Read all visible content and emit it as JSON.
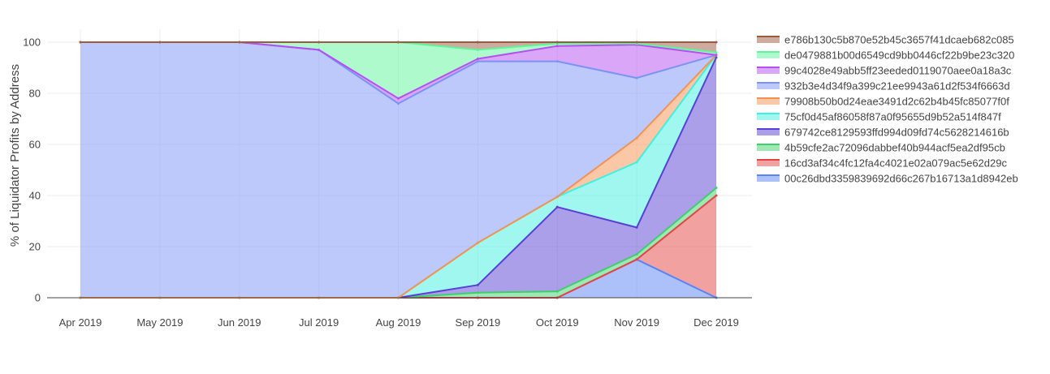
{
  "chart_data": {
    "type": "area",
    "stacking": "percent",
    "title": "",
    "xlabel": "",
    "ylabel": "% of Liquidator Profits by Address",
    "ylim": [
      0,
      100
    ],
    "yticks": [
      0,
      20,
      40,
      60,
      80,
      100
    ],
    "grid": true,
    "legend_position": "right",
    "categories": [
      "Apr 2019",
      "May 2019",
      "Jun 2019",
      "Jul 2019",
      "Aug 2019",
      "Sep 2019",
      "Oct 2019",
      "Nov 2019",
      "Dec 2019"
    ],
    "series": [
      {
        "name": "00c26dbd3359839692d66c267b16713a1d8942eb",
        "color": "#5a83f5",
        "values": [
          0,
          0,
          0,
          0,
          0,
          0,
          0,
          15,
          0
        ]
      },
      {
        "name": "16cd3af34c4fc12fa4c4021e02a079ac5e62d29c",
        "color": "#e64444",
        "values": [
          0,
          0,
          0,
          0,
          0,
          0,
          0,
          0,
          40
        ]
      },
      {
        "name": "4b59cfe2ac72096dabbef40b944acf5ea2df95cb",
        "color": "#3fcf6a",
        "values": [
          0,
          0,
          0,
          0,
          0,
          2,
          2.5,
          2,
          3
        ]
      },
      {
        "name": "679742ce8129593ffd994d09fd74c5628214616b",
        "color": "#5a3fd6",
        "values": [
          0,
          0,
          0,
          0,
          0,
          3,
          33,
          10.5,
          51
        ]
      },
      {
        "name": "75cf0d45af86058f87a0f95655d9b52a514f847f",
        "color": "#3ff0e0",
        "values": [
          0,
          0,
          0,
          0,
          0,
          16.5,
          4,
          25.5,
          1
        ]
      },
      {
        "name": "79908b50b0d24eae3491d2c62b4b45fc85077f0f",
        "color": "#f5924f",
        "values": [
          0,
          0,
          0,
          0,
          0,
          0,
          0,
          9.5,
          0
        ]
      },
      {
        "name": "932b3e4d34f9a399c21ee9943a61d2f534f6663d",
        "color": "#7b93f5",
        "values": [
          100,
          100,
          100,
          97,
          76,
          71,
          53,
          23.5,
          0
        ]
      },
      {
        "name": "99c4028e49abb5ff23eeded0119070aee0a18a3c",
        "color": "#b54ff2",
        "values": [
          0,
          0,
          0,
          0,
          2,
          1,
          6,
          13,
          0
        ]
      },
      {
        "name": "de0479881b00d6549cd9bb0446cf22b9be23c320",
        "color": "#5ff59a",
        "values": [
          0,
          0,
          0,
          3,
          22,
          3.5,
          1,
          0.5,
          1
        ]
      },
      {
        "name": "e786b130c5b870e52b45c3657f41dcaeb682c085",
        "color": "#9c5a3f",
        "values": [
          0,
          0,
          0,
          0,
          0,
          3,
          0.5,
          0.5,
          4
        ]
      }
    ]
  }
}
